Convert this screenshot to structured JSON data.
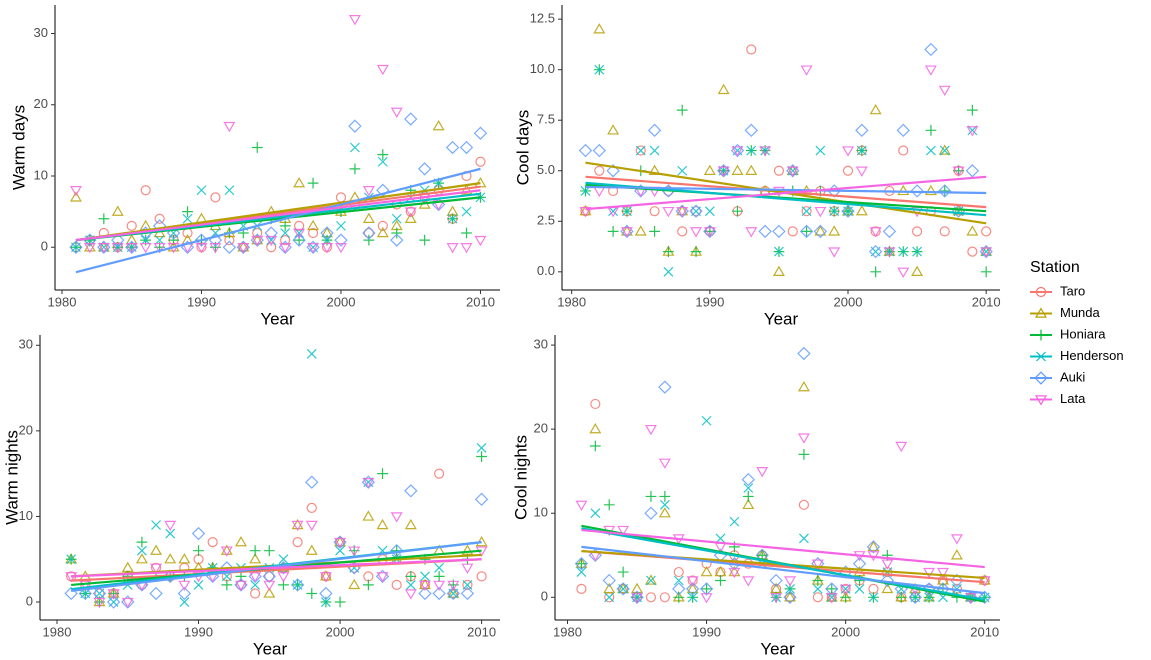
{
  "legend": {
    "title": "Station",
    "position": "right"
  },
  "chart_data": [
    {
      "type": "scatter",
      "x_label": "Year",
      "y_label": "Warm days",
      "x": [
        1981,
        1982,
        1983,
        1984,
        1985,
        1986,
        1987,
        1988,
        1989,
        1990,
        1991,
        1992,
        1993,
        1994,
        1995,
        1996,
        1997,
        1998,
        1999,
        2000,
        2001,
        2002,
        2003,
        2004,
        2005,
        2006,
        2007,
        2008,
        2009,
        2010
      ],
      "xlim": [
        1979.5,
        2011.4
      ],
      "xticks": [
        1980,
        1990,
        2000,
        2010
      ],
      "ylim": [
        -6,
        34
      ],
      "yticks": [
        0,
        10,
        20,
        30
      ],
      "series": [
        {
          "name": "Taro",
          "color": "#F8766D",
          "shape": "circle",
          "trend": [
            1,
            8.5
          ],
          "values": [
            0,
            1,
            2,
            0,
            3,
            8,
            4,
            1,
            2,
            0,
            7,
            1,
            0,
            2,
            0,
            1,
            3,
            2,
            0,
            7,
            6,
            2,
            3,
            6,
            5,
            7,
            8,
            4,
            10,
            12
          ]
        },
        {
          "name": "Munda",
          "color": "#B79F00",
          "shape": "triangle",
          "trend": [
            1,
            9
          ],
          "values": [
            7,
            0,
            0,
            5,
            1,
            3,
            2,
            0,
            1,
            4,
            3,
            2,
            0,
            1,
            5,
            4,
            9,
            3,
            2,
            5,
            7,
            4,
            2,
            3,
            4,
            6,
            17,
            5,
            8,
            9
          ]
        },
        {
          "name": "Honiara",
          "color": "#00BA38",
          "shape": "plus",
          "trend": [
            1,
            7
          ],
          "values": [
            0,
            1,
            4,
            0,
            0,
            1,
            0,
            1,
            5,
            1,
            0,
            2,
            2,
            14,
            4,
            3,
            1,
            9,
            1,
            5,
            11,
            1,
            13,
            2,
            8,
            1,
            9,
            4,
            2,
            7
          ]
        },
        {
          "name": "Henderson",
          "color": "#00BFC4",
          "shape": "cross",
          "trend": [
            1,
            7.5
          ],
          "values": [
            0,
            1,
            0,
            0,
            0,
            1,
            1,
            2,
            4,
            8,
            2,
            8,
            3,
            3,
            1,
            2,
            2,
            0,
            1,
            3,
            14,
            7,
            12,
            4,
            7,
            8,
            9,
            4,
            5,
            7
          ]
        },
        {
          "name": "Auki",
          "color": "#619CFF",
          "shape": "diamond",
          "trend": [
            -3.5,
            11
          ],
          "values": [
            0,
            1,
            0,
            1,
            0,
            2,
            3,
            2,
            0,
            1,
            1,
            0,
            0,
            1,
            2,
            0,
            1,
            0,
            2,
            1,
            17,
            2,
            8,
            1,
            18,
            11,
            6,
            14,
            14,
            16
          ]
        },
        {
          "name": "Lata",
          "color": "#F564E3",
          "shape": "triangle-down",
          "trend": [
            1,
            8
          ],
          "values": [
            8,
            0,
            0,
            0,
            0,
            0,
            0,
            0,
            0,
            0,
            0,
            17,
            0,
            1,
            1,
            0,
            2,
            0,
            0,
            0,
            32,
            8,
            25,
            19,
            5,
            7,
            6,
            0,
            0,
            1
          ]
        }
      ]
    },
    {
      "type": "scatter",
      "x_label": "Year",
      "y_label": "Cool days",
      "x": [
        1981,
        1982,
        1983,
        1984,
        1985,
        1986,
        1987,
        1988,
        1989,
        1990,
        1991,
        1992,
        1993,
        1994,
        1995,
        1996,
        1997,
        1998,
        1999,
        2000,
        2001,
        2002,
        2003,
        2004,
        2005,
        2006,
        2007,
        2008,
        2009,
        2010
      ],
      "xlim": [
        1979.3,
        2011
      ],
      "xticks": [
        1980,
        1990,
        2000,
        2010
      ],
      "ylim": [
        -0.9,
        13.2
      ],
      "yticks": [
        {
          "value": 0,
          "label": "0.0"
        },
        2.5,
        {
          "value": 5,
          "label": "5.0"
        },
        7.5,
        {
          "value": 10,
          "label": "10.0"
        },
        12.5
      ],
      "series": [
        {
          "name": "Taro",
          "color": "#F8766D",
          "shape": "circle",
          "trend": [
            4.7,
            3.2
          ],
          "values": [
            3,
            5,
            4,
            3,
            6,
            3,
            4,
            2,
            3,
            2,
            5,
            3,
            11,
            4,
            5,
            2,
            3,
            4,
            3,
            5,
            6,
            2,
            4,
            6,
            2,
            3,
            2,
            5,
            1,
            2
          ]
        },
        {
          "name": "Munda",
          "color": "#B79F00",
          "shape": "triangle",
          "trend": [
            5.4,
            2.4
          ],
          "values": [
            3,
            12,
            7,
            2,
            2,
            5,
            1,
            3,
            1,
            5,
            9,
            5,
            5,
            4,
            0,
            5,
            4,
            2,
            2,
            3,
            3,
            8,
            1,
            4,
            0,
            4,
            6,
            3,
            2,
            1
          ]
        },
        {
          "name": "Honiara",
          "color": "#00BA38",
          "shape": "plus",
          "trend": [
            4.3,
            3.0
          ],
          "values": [
            4,
            10,
            2,
            3,
            5,
            2,
            1,
            8,
            1,
            2,
            5,
            3,
            6,
            6,
            1,
            4,
            2,
            4,
            3,
            3,
            6,
            0,
            1,
            1,
            1,
            7,
            4,
            5,
            8,
            0
          ]
        },
        {
          "name": "Henderson",
          "color": "#00BFC4",
          "shape": "cross",
          "trend": [
            4.4,
            2.8
          ],
          "values": [
            4,
            10,
            3,
            3,
            6,
            6,
            0,
            5,
            3,
            3,
            5,
            6,
            6,
            6,
            1,
            5,
            3,
            6,
            3,
            3,
            6,
            1,
            1,
            1,
            1,
            6,
            6,
            3,
            7,
            1
          ]
        },
        {
          "name": "Auki",
          "color": "#619CFF",
          "shape": "diamond",
          "trend": [
            4.2,
            3.9
          ],
          "values": [
            6,
            6,
            5,
            2,
            4,
            7,
            4,
            3,
            3,
            2,
            5,
            6,
            7,
            2,
            2,
            5,
            2,
            2,
            4,
            3,
            7,
            1,
            2,
            7,
            4,
            11,
            4,
            3,
            5,
            1
          ]
        },
        {
          "name": "Lata",
          "color": "#F564E3",
          "shape": "triangle-down",
          "trend": [
            3.1,
            4.7
          ],
          "values": [
            3,
            4,
            3,
            2,
            4,
            4,
            3,
            3,
            2,
            2,
            5,
            6,
            2,
            6,
            4,
            5,
            10,
            3,
            1,
            6,
            5,
            2,
            1,
            0,
            3,
            10,
            9,
            5,
            7,
            1
          ]
        }
      ]
    },
    {
      "type": "scatter",
      "x_label": "Year",
      "y_label": "Warm nights",
      "x": [
        1981,
        1982,
        1983,
        1984,
        1985,
        1986,
        1987,
        1988,
        1989,
        1990,
        1991,
        1992,
        1993,
        1994,
        1995,
        1996,
        1997,
        1998,
        1999,
        2000,
        2001,
        2002,
        2003,
        2004,
        2005,
        2006,
        2007,
        2008,
        2009,
        2010
      ],
      "xlim": [
        1978.8,
        2011.3
      ],
      "xticks": [
        1980,
        1990,
        2000,
        2010
      ],
      "ylim": [
        -2.1,
        31.2
      ],
      "yticks": [
        0,
        10,
        20,
        30
      ],
      "series": [
        {
          "name": "Taro",
          "color": "#F8766D",
          "shape": "circle",
          "trend": [
            2.5,
            5
          ],
          "values": [
            3,
            2,
            1,
            1,
            3,
            2,
            4,
            3,
            4,
            5,
            7,
            3,
            2,
            1,
            3,
            4,
            7,
            11,
            3,
            7,
            4,
            3,
            5,
            2,
            3,
            2,
            15,
            1,
            2,
            3
          ]
        },
        {
          "name": "Munda",
          "color": "#B79F00",
          "shape": "triangle",
          "trend": [
            3,
            5.5
          ],
          "values": [
            5,
            3,
            0,
            1,
            4,
            5,
            6,
            5,
            5,
            4,
            4,
            6,
            7,
            5,
            1,
            4,
            9,
            6,
            3,
            7,
            2,
            10,
            9,
            5,
            9,
            2,
            6,
            1,
            6,
            7
          ]
        },
        {
          "name": "Honiara",
          "color": "#00BA38",
          "shape": "plus",
          "trend": [
            2,
            6
          ],
          "values": [
            5,
            1,
            0,
            1,
            3,
            7,
            3,
            3,
            3,
            6,
            4,
            2,
            3,
            6,
            6,
            2,
            2,
            1,
            0,
            0,
            6,
            2,
            15,
            6,
            3,
            5,
            3,
            2,
            5,
            17
          ]
        },
        {
          "name": "Henderson",
          "color": "#00BFC4",
          "shape": "cross",
          "trend": [
            1.5,
            7
          ],
          "values": [
            5,
            1,
            1,
            0,
            2,
            6,
            9,
            8,
            0,
            2,
            4,
            3,
            4,
            2,
            4,
            5,
            2,
            29,
            0,
            6,
            4,
            14,
            6,
            5,
            2,
            3,
            4,
            1,
            2,
            18
          ]
        },
        {
          "name": "Auki",
          "color": "#619CFF",
          "shape": "diamond",
          "trend": [
            1.3,
            7
          ],
          "values": [
            1,
            1,
            1,
            0,
            0,
            2,
            1,
            3,
            1,
            8,
            3,
            4,
            2,
            3,
            3,
            4,
            2,
            14,
            1,
            7,
            4,
            14,
            3,
            6,
            13,
            1,
            1,
            1,
            1,
            12
          ]
        },
        {
          "name": "Lata",
          "color": "#F564E3",
          "shape": "triangle-down",
          "trend": [
            3,
            5
          ],
          "values": [
            3,
            2,
            0,
            1,
            0,
            2,
            4,
            9,
            2,
            3,
            3,
            6,
            2,
            3,
            2,
            3,
            9,
            9,
            3,
            7,
            6,
            14,
            3,
            10,
            1,
            2,
            2,
            2,
            4,
            6
          ]
        }
      ]
    },
    {
      "type": "scatter",
      "x_label": "Year",
      "y_label": "Cool nights",
      "x": [
        1981,
        1982,
        1983,
        1984,
        1985,
        1986,
        1987,
        1988,
        1989,
        1990,
        1991,
        1992,
        1993,
        1994,
        1995,
        1996,
        1997,
        1998,
        1999,
        2000,
        2001,
        2002,
        2003,
        2004,
        2005,
        2006,
        2007,
        2008,
        2009,
        2010
      ],
      "xlim": [
        1979.1,
        2011.1
      ],
      "xticks": [
        1980,
        1990,
        2000,
        2010
      ],
      "ylim": [
        -2.7,
        31.2
      ],
      "yticks": [
        0,
        10,
        20,
        30
      ],
      "series": [
        {
          "name": "Taro",
          "color": "#F8766D",
          "shape": "circle",
          "trend": [
            5.5,
            1.8
          ],
          "values": [
            1,
            23,
            0,
            1,
            0,
            0,
            0,
            3,
            2,
            4,
            3,
            5,
            4,
            5,
            1,
            0,
            11,
            0,
            0,
            1,
            2,
            1,
            3,
            0,
            0,
            1,
            2,
            1,
            0,
            2
          ]
        },
        {
          "name": "Munda",
          "color": "#B79F00",
          "shape": "triangle",
          "trend": [
            5.5,
            2.3
          ],
          "values": [
            4,
            20,
            1,
            1,
            1,
            2,
            10,
            0,
            1,
            3,
            3,
            3,
            11,
            5,
            1,
            0,
            25,
            2,
            0,
            0,
            3,
            6,
            1,
            0,
            1,
            0,
            2,
            5,
            0,
            2
          ]
        },
        {
          "name": "Honiara",
          "color": "#00BA38",
          "shape": "plus",
          "trend": [
            8.5,
            -0.5
          ],
          "values": [
            4,
            18,
            11,
            3,
            0,
            12,
            12,
            0,
            0,
            1,
            2,
            6,
            12,
            5,
            0,
            1,
            17,
            2,
            1,
            0,
            2,
            0,
            5,
            0,
            0,
            0,
            1,
            0,
            0,
            0
          ]
        },
        {
          "name": "Henderson",
          "color": "#00BFC4",
          "shape": "cross",
          "trend": [
            8.2,
            -0.3
          ],
          "values": [
            3,
            10,
            0,
            1,
            0,
            2,
            11,
            2,
            0,
            21,
            7,
            9,
            13,
            4,
            0,
            1,
            7,
            1,
            0,
            1,
            1,
            0,
            3,
            1,
            0,
            0,
            0,
            1,
            0,
            0
          ]
        },
        {
          "name": "Auki",
          "color": "#619CFF",
          "shape": "diamond",
          "trend": [
            6,
            0.5
          ],
          "values": [
            4,
            5,
            2,
            1,
            0,
            10,
            25,
            1,
            1,
            1,
            5,
            4,
            14,
            5,
            2,
            0,
            29,
            4,
            1,
            3,
            4,
            6,
            2,
            1,
            0,
            1,
            1,
            2,
            0,
            0
          ]
        },
        {
          "name": "Lata",
          "color": "#F564E3",
          "shape": "triangle-down",
          "trend": [
            8,
            3.6
          ],
          "values": [
            11,
            5,
            8,
            8,
            0,
            20,
            16,
            7,
            2,
            0,
            6,
            3,
            2,
            15,
            0,
            2,
            19,
            4,
            0,
            1,
            5,
            5,
            4,
            18,
            1,
            3,
            3,
            7,
            0,
            2
          ]
        }
      ]
    }
  ]
}
